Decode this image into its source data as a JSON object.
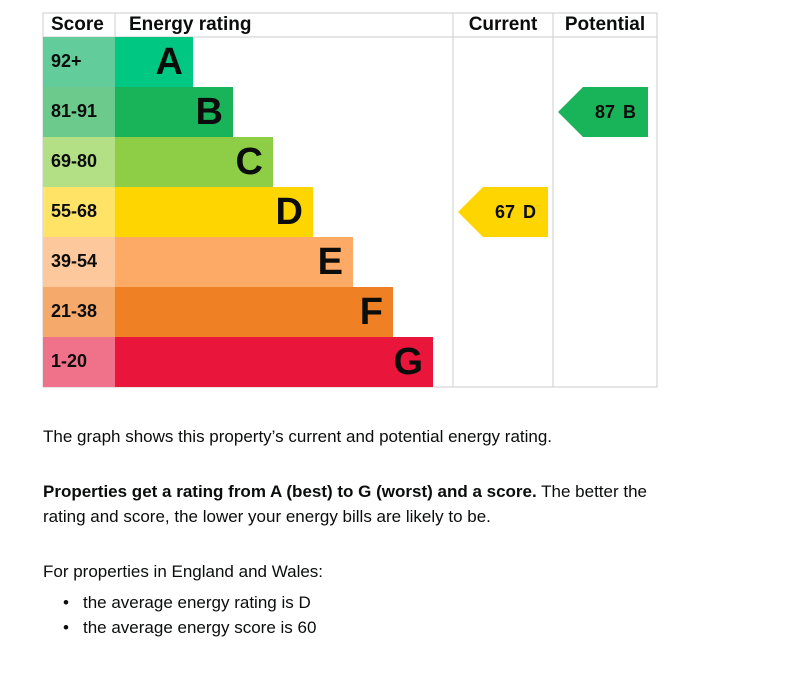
{
  "table": {
    "headers": [
      "Score",
      "Energy rating",
      "Current",
      "Potential"
    ]
  },
  "bands": [
    {
      "score": "92+",
      "letter": "A",
      "color": "#00c781",
      "score_color": "#62cd9a"
    },
    {
      "score": "81-91",
      "letter": "B",
      "color": "#19b459",
      "score_color": "#6ccb8c"
    },
    {
      "score": "69-80",
      "letter": "C",
      "color": "#8dce46",
      "score_color": "#b3df85"
    },
    {
      "score": "55-68",
      "letter": "D",
      "color": "#ffd500",
      "score_color": "#ffe366"
    },
    {
      "score": "39-54",
      "letter": "E",
      "color": "#fcaa65",
      "score_color": "#fdc89b"
    },
    {
      "score": "21-38",
      "letter": "F",
      "color": "#ef8023",
      "score_color": "#f5aa6b"
    },
    {
      "score": "1-20",
      "letter": "G",
      "color": "#e9153b",
      "score_color": "#f0728a"
    }
  ],
  "current": {
    "score": 67,
    "letter": "D",
    "color": "#ffd500"
  },
  "potential": {
    "score": 87,
    "letter": "B",
    "color": "#19b459"
  },
  "text": {
    "intro": "The graph shows this property’s current and potential energy rating.",
    "rating_bold": "Properties get a rating from A (best) to G (worst) and a score.",
    "rating_rest": "The better the rating and score, the lower your energy bills are likely to be.",
    "england": "For properties in England and Wales:",
    "bullets": [
      "the average energy rating is D",
      "the average energy score is 60"
    ]
  }
}
